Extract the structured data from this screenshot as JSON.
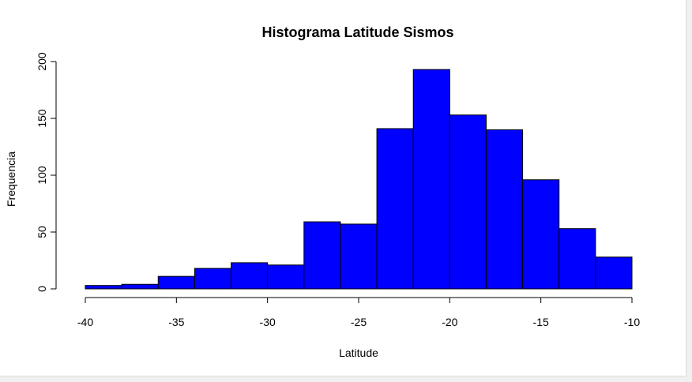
{
  "chart_data": {
    "type": "bar",
    "title": "Histograma Latitude Sismos",
    "xlabel": "Latitude",
    "ylabel": "Frequencia",
    "fill_color": "#0000ff",
    "border_color": "#000000",
    "xlim": [
      -40,
      -10
    ],
    "ylim": [
      0,
      200
    ],
    "x_ticks": [
      "-40",
      "-35",
      "-30",
      "-25",
      "-20",
      "-15",
      "-10"
    ],
    "y_ticks": [
      "0",
      "50",
      "100",
      "150",
      "200"
    ],
    "bins": [
      {
        "from": -40,
        "to": -38,
        "count": 3
      },
      {
        "from": -38,
        "to": -36,
        "count": 4
      },
      {
        "from": -36,
        "to": -34,
        "count": 11
      },
      {
        "from": -34,
        "to": -32,
        "count": 18
      },
      {
        "from": -32,
        "to": -30,
        "count": 23
      },
      {
        "from": -30,
        "to": -28,
        "count": 21
      },
      {
        "from": -28,
        "to": -26,
        "count": 59
      },
      {
        "from": -26,
        "to": -24,
        "count": 57
      },
      {
        "from": -24,
        "to": -22,
        "count": 141
      },
      {
        "from": -22,
        "to": -20,
        "count": 193
      },
      {
        "from": -20,
        "to": -18,
        "count": 153
      },
      {
        "from": -18,
        "to": -16,
        "count": 140
      },
      {
        "from": -16,
        "to": -14,
        "count": 96
      },
      {
        "from": -14,
        "to": -12,
        "count": 53
      },
      {
        "from": -12,
        "to": -10,
        "count": 28
      }
    ]
  }
}
